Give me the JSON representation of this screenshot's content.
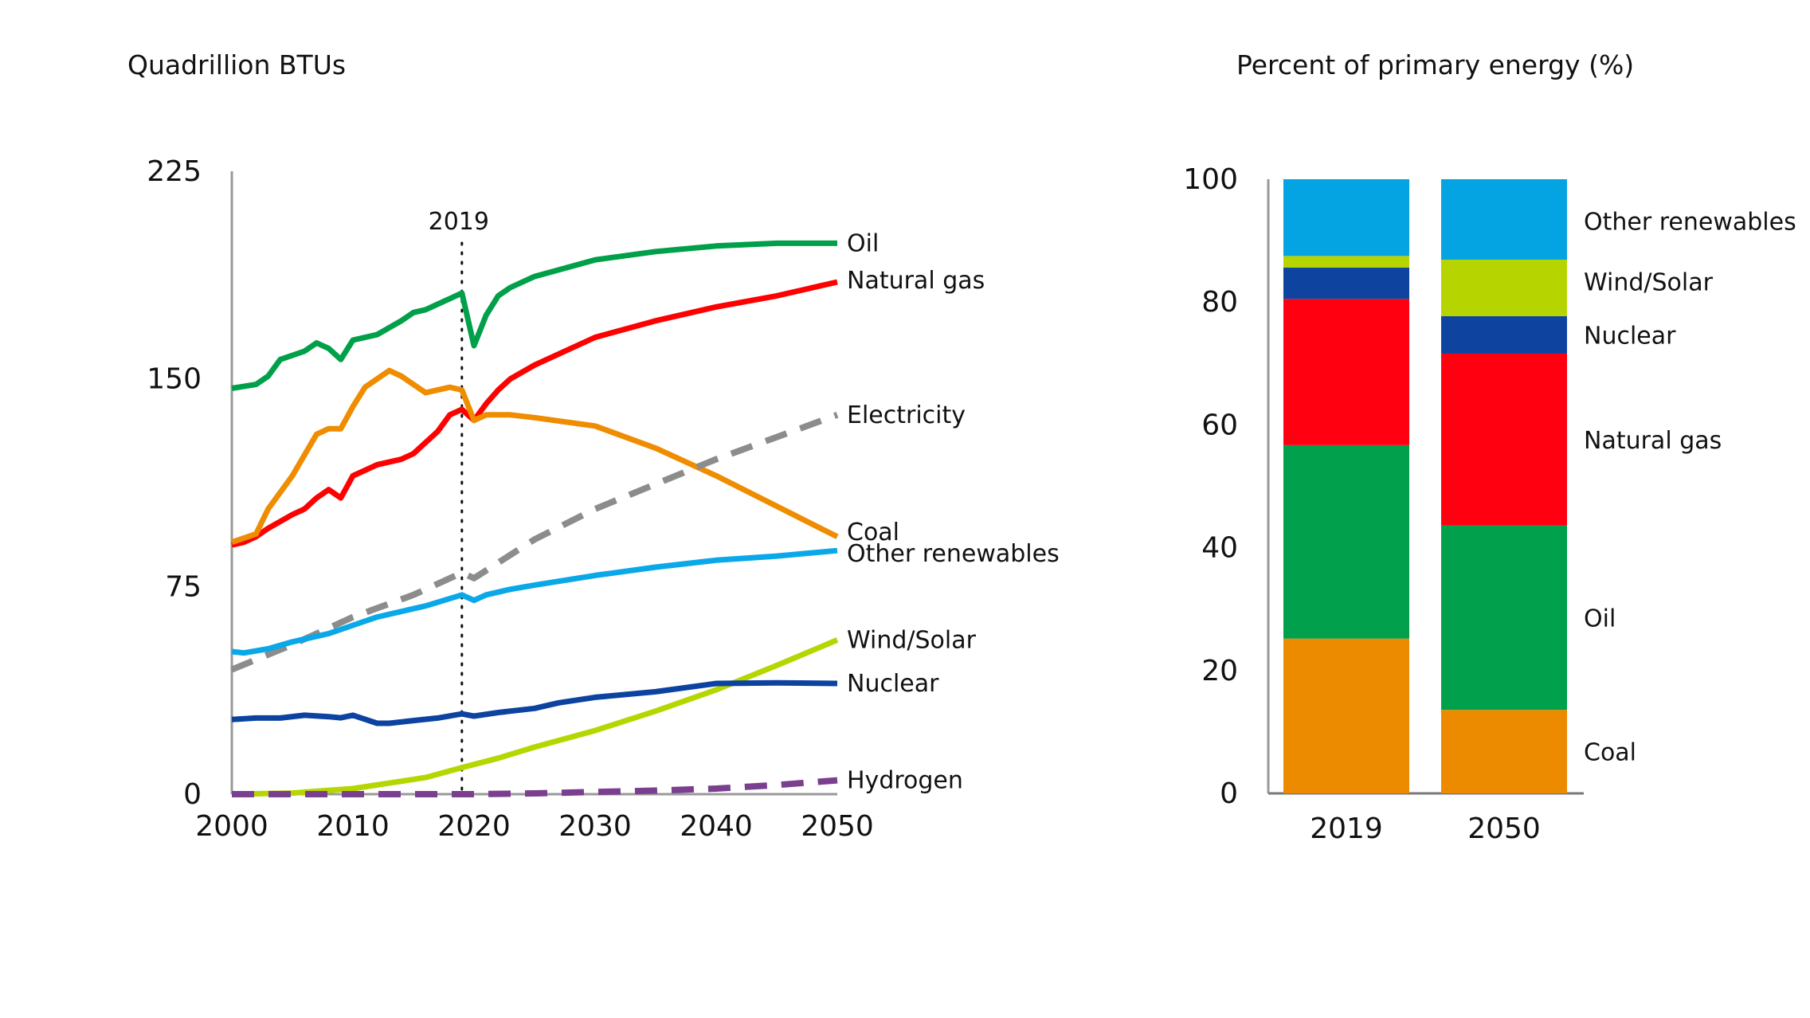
{
  "chart_data": [
    {
      "type": "line",
      "title": "Quadrillion BTUs",
      "xlabel": "",
      "ylabel": "Quadrillion BTUs",
      "xlim": [
        2000,
        2050
      ],
      "ylim": [
        0,
        225
      ],
      "xticks": [
        2000,
        2010,
        2020,
        2030,
        2040,
        2050
      ],
      "yticks": [
        0,
        75,
        150,
        225
      ],
      "grid": false,
      "annotation": {
        "label": "2019",
        "x": 2019,
        "style": "dotted vertical line"
      },
      "series": [
        {
          "name": "Oil",
          "color": "#00a04a",
          "dashed": false,
          "x": [
            2000,
            2002,
            2003,
            2004,
            2006,
            2007,
            2008,
            2009,
            2010,
            2012,
            2014,
            2015,
            2016,
            2018,
            2019,
            2020,
            2021,
            2022,
            2023,
            2025,
            2030,
            2035,
            2040,
            2045,
            2050
          ],
          "y": [
            146.6,
            148,
            151,
            157,
            160,
            163,
            161,
            157,
            164,
            166,
            171,
            174,
            175,
            179,
            181,
            162,
            173,
            180,
            183,
            187,
            193,
            196,
            198,
            199,
            199
          ]
        },
        {
          "name": "Natural gas",
          "color": "#ff0000",
          "dashed": false,
          "x": [
            2000,
            2001,
            2002,
            2003,
            2005,
            2006,
            2007,
            2008,
            2009,
            2010,
            2011,
            2012,
            2014,
            2015,
            2016,
            2017,
            2018,
            2019,
            2020,
            2021,
            2022,
            2023,
            2025,
            2030,
            2035,
            2040,
            2045,
            2050
          ],
          "y": [
            90,
            91,
            93,
            96,
            101,
            103,
            107,
            110,
            107,
            115,
            117,
            119,
            121,
            123,
            127,
            131,
            137,
            139,
            135,
            141,
            146,
            150,
            155,
            165,
            171,
            176,
            180,
            185
          ]
        },
        {
          "name": "Coal",
          "color": "#ef8c00",
          "dashed": false,
          "x": [
            2000,
            2002,
            2003,
            2005,
            2007,
            2008,
            2009,
            2010,
            2011,
            2012,
            2013,
            2014,
            2016,
            2017,
            2018,
            2019,
            2020,
            2021,
            2022,
            2023,
            2025,
            2030,
            2035,
            2040,
            2045,
            2050
          ],
          "y": [
            91,
            94,
            103,
            115,
            130,
            132,
            132,
            140,
            147,
            150,
            153,
            151,
            145,
            146,
            147,
            146,
            135,
            137,
            137,
            137,
            136,
            133,
            125,
            115,
            104,
            93
          ]
        },
        {
          "name": "Electricity",
          "color": "#8c8c8c",
          "dashed": true,
          "x": [
            2000,
            2005,
            2010,
            2015,
            2019,
            2020,
            2025,
            2030,
            2035,
            2040,
            2045,
            2050
          ],
          "y": [
            45,
            54,
            64,
            72,
            80,
            78,
            92,
            103,
            112,
            121,
            129,
            137
          ]
        },
        {
          "name": "Other renewables",
          "color": "#0aa8e8",
          "dashed": false,
          "x": [
            2000,
            2001,
            2003,
            2005,
            2008,
            2010,
            2012,
            2014,
            2016,
            2019,
            2020,
            2021,
            2023,
            2025,
            2030,
            2035,
            2040,
            2045,
            2050
          ],
          "y": [
            51.5,
            51,
            52.5,
            55,
            58,
            61,
            64,
            66,
            68,
            72,
            70,
            72,
            74,
            75.5,
            79,
            82,
            84.5,
            86,
            88
          ]
        },
        {
          "name": "Wind/Solar",
          "color": "#b6d600",
          "dashed": false,
          "x": [
            2000,
            2005,
            2010,
            2013,
            2016,
            2019,
            2022,
            2025,
            2030,
            2035,
            2040,
            2045,
            2050
          ],
          "y": [
            0,
            0.4,
            2,
            4,
            6,
            9.6,
            13,
            17,
            23,
            30,
            37.7,
            46.5,
            55.7
          ]
        },
        {
          "name": "Nuclear",
          "color": "#0c43a0",
          "dashed": false,
          "x": [
            2000,
            2002,
            2004,
            2006,
            2008,
            2009,
            2010,
            2012,
            2013,
            2015,
            2017,
            2019,
            2020,
            2022,
            2025,
            2027,
            2030,
            2035,
            2040,
            2045,
            2050
          ],
          "y": [
            27,
            27.5,
            27.5,
            28.5,
            28,
            27.6,
            28.5,
            25.6,
            25.6,
            26.6,
            27.5,
            29,
            28.2,
            29.5,
            31,
            33,
            35,
            37,
            40,
            40.2,
            40
          ]
        },
        {
          "name": "Hydrogen",
          "color": "#7b3f8f",
          "dashed": true,
          "x": [
            2000,
            2010,
            2020,
            2025,
            2030,
            2035,
            2040,
            2045,
            2050
          ],
          "y": [
            0,
            0,
            0,
            0.3,
            0.8,
            1.3,
            2,
            3.3,
            5
          ]
        }
      ]
    },
    {
      "type": "bar",
      "stacked": true,
      "title": "Percent of primary energy (%)",
      "xlabel": "",
      "ylabel": "Percent of primary energy (%)",
      "categories": [
        "2019",
        "2050"
      ],
      "ylim": [
        0,
        100
      ],
      "yticks": [
        0,
        20,
        40,
        60,
        80,
        100
      ],
      "grid": false,
      "legend": "right",
      "series": [
        {
          "name": "Coal",
          "color": "#ec8b00",
          "values": [
            25.2,
            13.6
          ]
        },
        {
          "name": "Oil",
          "color": "#00a04c",
          "values": [
            31.5,
            30.0
          ]
        },
        {
          "name": "Natural gas",
          "color": "#ff0010",
          "values": [
            23.8,
            28.0
          ]
        },
        {
          "name": "Nuclear",
          "color": "#0e44a0",
          "values": [
            5.1,
            6.1
          ]
        },
        {
          "name": "Wind/Solar",
          "color": "#b6d500",
          "values": [
            1.9,
            9.2
          ]
        },
        {
          "name": "Other renewables",
          "color": "#04a4e2",
          "values": [
            12.5,
            13.1
          ]
        }
      ]
    }
  ]
}
